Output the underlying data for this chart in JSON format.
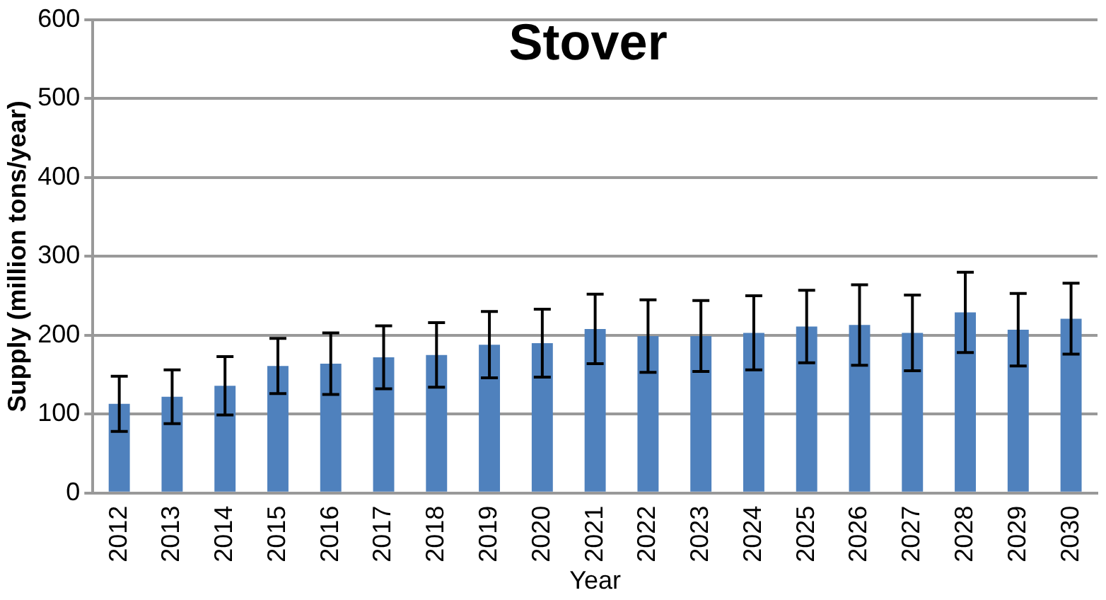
{
  "chart_data": {
    "type": "bar",
    "title": "Stover",
    "xlabel": "Year",
    "ylabel": "Supply (million tons/year)",
    "categories": [
      "2012",
      "2013",
      "2014",
      "2015",
      "2016",
      "2017",
      "2018",
      "2019",
      "2020",
      "2021",
      "2022",
      "2023",
      "2024",
      "2025",
      "2026",
      "2027",
      "2028",
      "2029",
      "2030"
    ],
    "values": [
      113,
      122,
      136,
      161,
      164,
      172,
      175,
      188,
      190,
      208,
      199,
      199,
      203,
      211,
      213,
      203,
      229,
      207,
      221
    ],
    "errors": [
      35,
      34,
      37,
      35,
      39,
      40,
      41,
      42,
      43,
      44,
      46,
      45,
      47,
      46,
      51,
      48,
      51,
      46,
      45
    ],
    "color": "#4f81bd",
    "ylim": [
      0,
      600
    ],
    "yticks": [
      0,
      100,
      200,
      300,
      400,
      500,
      600
    ],
    "grid": "y",
    "legend": false
  }
}
